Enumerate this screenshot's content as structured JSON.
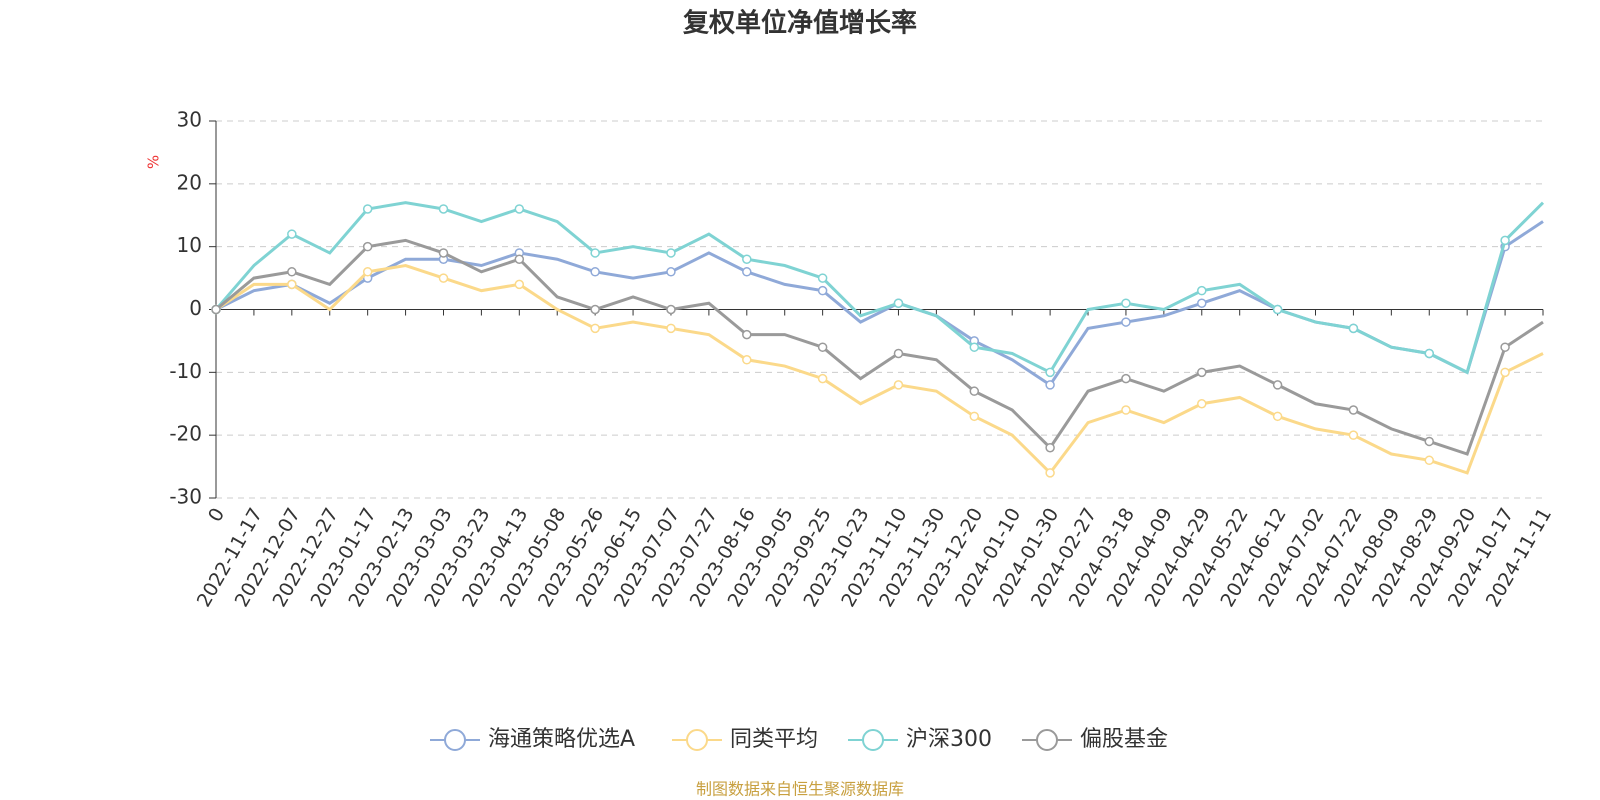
{
  "chart_data": {
    "type": "line",
    "title": "复权单位净值增长率",
    "y_unit": "%",
    "source": "制图数据来自恒生聚源数据库",
    "categories": [
      "0",
      "2022-11-17",
      "2022-12-07",
      "2022-12-27",
      "2023-01-17",
      "2023-02-13",
      "2023-03-03",
      "2023-03-23",
      "2023-04-13",
      "2023-05-08",
      "2023-05-26",
      "2023-06-15",
      "2023-07-07",
      "2023-07-27",
      "2023-08-16",
      "2023-09-05",
      "2023-09-25",
      "2023-10-23",
      "2023-11-10",
      "2023-11-30",
      "2023-12-20",
      "2024-01-10",
      "2024-01-30",
      "2024-02-27",
      "2024-03-18",
      "2024-04-09",
      "2024-04-29",
      "2024-05-22",
      "2024-06-12",
      "2024-07-02",
      "2024-07-22",
      "2024-08-09",
      "2024-08-29",
      "2024-09-20",
      "2024-10-17",
      "2024-11-11"
    ],
    "series": [
      {
        "name": "海通策略优选A",
        "color": "#8fa9d8",
        "values": [
          0,
          3,
          4,
          1,
          5,
          8,
          8,
          7,
          9,
          8,
          6,
          5,
          6,
          9,
          6,
          4,
          3,
          -2,
          1,
          -1,
          -5,
          -8,
          -12,
          -3,
          -2,
          -1,
          1,
          3,
          0,
          -2,
          -3,
          -6,
          -7,
          -10,
          10,
          14
        ]
      },
      {
        "name": "同类平均",
        "color": "#fbd98a",
        "values": [
          0,
          4,
          4,
          0,
          6,
          7,
          5,
          3,
          4,
          0,
          -3,
          -2,
          -3,
          -4,
          -8,
          -9,
          -11,
          -15,
          -12,
          -13,
          -17,
          -20,
          -26,
          -18,
          -16,
          -18,
          -15,
          -14,
          -17,
          -19,
          -20,
          -23,
          -24,
          -26,
          -10,
          -7
        ]
      },
      {
        "name": "沪深300",
        "color": "#7fd3d3",
        "values": [
          0,
          7,
          12,
          9,
          16,
          17,
          16,
          14,
          16,
          14,
          9,
          10,
          9,
          12,
          8,
          7,
          5,
          -1,
          1,
          -1,
          -6,
          -7,
          -10,
          0,
          1,
          0,
          3,
          4,
          0,
          -2,
          -3,
          -6,
          -7,
          -10,
          11,
          17
        ]
      },
      {
        "name": "偏股基金",
        "color": "#9a9a9a",
        "values": [
          0,
          5,
          6,
          4,
          10,
          11,
          9,
          6,
          8,
          2,
          0,
          2,
          0,
          1,
          -4,
          -4,
          -6,
          -11,
          -7,
          -8,
          -13,
          -16,
          -22,
          -13,
          -11,
          -13,
          -10,
          -9,
          -12,
          -15,
          -16,
          -19,
          -21,
          -23,
          -6,
          -2
        ]
      }
    ],
    "ylim": [
      -30,
      30
    ],
    "yticks": [
      -30,
      -20,
      -10,
      0,
      10,
      20,
      30
    ],
    "grid": true
  }
}
